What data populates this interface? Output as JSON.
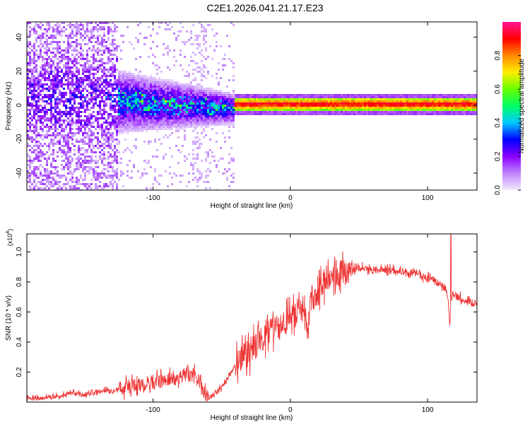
{
  "figure_title": "C2E1.2026.041.21.17.E23",
  "chart_data": [
    {
      "type": "heatmap",
      "name": "spectrogram",
      "xlabel": "Height of straight line (km)",
      "ylabel": "Frequency (Hz)",
      "xlim": [
        -192,
        136
      ],
      "ylim": [
        -50,
        49
      ],
      "xticks": [
        -100,
        0,
        100
      ],
      "yticks": [
        -40,
        -20,
        0,
        20,
        40
      ],
      "colorbar": {
        "label": "Normalized spectral amplitude",
        "range": [
          0,
          1
        ],
        "ticks": [
          "0.0",
          "0.2",
          "0.4",
          "0.6",
          "0.8"
        ],
        "tick_values": [
          0.0,
          0.2,
          0.4,
          0.6,
          0.8
        ],
        "colors": [
          "#f4eafc",
          "#c084fc",
          "#8b00ff",
          "#0000ff",
          "#00c8ff",
          "#00ff66",
          "#66ff00",
          "#ffee00",
          "#ff8800",
          "#ff0000",
          "#ff1493"
        ]
      },
      "description_regions": [
        {
          "x_from": -192,
          "x_to": -125,
          "pattern": "broadband noise across all frequencies",
          "level": 0.25
        },
        {
          "x_from": -125,
          "x_to": -40,
          "pattern": "concentrated near 0 to 10 Hz, spread ±20 Hz",
          "level": 0.45
        },
        {
          "x_from": -40,
          "x_to": 136,
          "pattern": "narrow line at ~0 Hz",
          "level": 0.95
        }
      ]
    },
    {
      "type": "line",
      "name": "snr",
      "xlabel": "Height of straight line (km)",
      "ylabel": "SNR (10 * v/v)",
      "scale_label": "(x10",
      "scale_exp": "4",
      "scale_suffix": ")",
      "xlim": [
        -192,
        136
      ],
      "ylim": [
        0,
        1.12
      ],
      "xticks": [
        -100,
        0,
        100
      ],
      "yticks": [
        0.2,
        0.4,
        0.6,
        0.8,
        1.0
      ],
      "ytick_labels": [
        "0.2",
        "0.4",
        "0.6",
        "0.8",
        "1.0"
      ],
      "color": "#ee3333",
      "series": [
        {
          "name": "SNR",
          "x": [
            -192,
            -180,
            -170,
            -160,
            -150,
            -140,
            -130,
            -120,
            -110,
            -100,
            -90,
            -80,
            -75,
            -70,
            -65,
            -62,
            -60,
            -55,
            -50,
            -45,
            -40,
            -35,
            -30,
            -25,
            -20,
            -15,
            -10,
            -5,
            0,
            5,
            10,
            12,
            15,
            20,
            25,
            30,
            35,
            40,
            45,
            50,
            55,
            60,
            70,
            80,
            90,
            100,
            105,
            110,
            113,
            115,
            116,
            118,
            120,
            125,
            130,
            136
          ],
          "y": [
            0.02,
            0.03,
            0.04,
            0.06,
            0.05,
            0.07,
            0.08,
            0.1,
            0.11,
            0.13,
            0.15,
            0.17,
            0.18,
            0.17,
            0.13,
            0.05,
            0.03,
            0.05,
            0.1,
            0.17,
            0.25,
            0.3,
            0.33,
            0.37,
            0.42,
            0.46,
            0.5,
            0.52,
            0.55,
            0.6,
            0.62,
            0.45,
            0.68,
            0.74,
            0.8,
            0.85,
            0.87,
            0.87,
            0.88,
            0.89,
            0.89,
            0.88,
            0.88,
            0.87,
            0.86,
            0.83,
            0.81,
            0.78,
            0.76,
            0.7,
            0.48,
            0.74,
            0.71,
            0.69,
            0.67,
            0.65
          ]
        }
      ],
      "noise_amplitude": 0.05,
      "spike_x": 117,
      "spike_y": 1.12
    }
  ]
}
